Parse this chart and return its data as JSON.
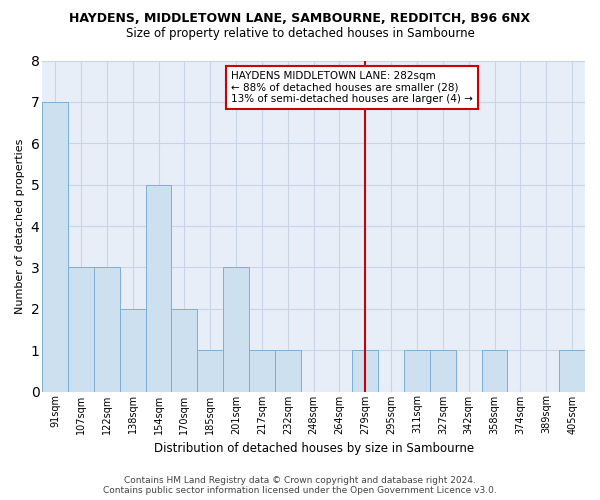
{
  "title1": "HAYDENS, MIDDLETOWN LANE, SAMBOURNE, REDDITCH, B96 6NX",
  "title2": "Size of property relative to detached houses in Sambourne",
  "xlabel": "Distribution of detached houses by size in Sambourne",
  "ylabel": "Number of detached properties",
  "categories": [
    "91sqm",
    "107sqm",
    "122sqm",
    "138sqm",
    "154sqm",
    "170sqm",
    "185sqm",
    "201sqm",
    "217sqm",
    "232sqm",
    "248sqm",
    "264sqm",
    "279sqm",
    "295sqm",
    "311sqm",
    "327sqm",
    "342sqm",
    "358sqm",
    "374sqm",
    "389sqm",
    "405sqm"
  ],
  "values": [
    7,
    3,
    3,
    2,
    5,
    2,
    1,
    3,
    1,
    1,
    0,
    0,
    1,
    0,
    1,
    1,
    0,
    1,
    0,
    0,
    1
  ],
  "bar_color": "#cce0f0",
  "bar_edge_color": "#7ab0d8",
  "bar_linewidth": 0.7,
  "vline_x_idx": 12,
  "vline_color": "#cc0000",
  "annotation_title": "HAYDENS MIDDLETOWN LANE: 282sqm",
  "annotation_line1": "← 88% of detached houses are smaller (28)",
  "annotation_line2": "13% of semi-detached houses are larger (4) →",
  "annotation_box_color": "#ffffff",
  "annotation_box_edge_color": "#cc0000",
  "ylim": [
    0,
    8
  ],
  "yticks": [
    0,
    1,
    2,
    3,
    4,
    5,
    6,
    7,
    8
  ],
  "grid_color": "#c8d4e8",
  "plot_bg_color": "#e8eef8",
  "footer1": "Contains HM Land Registry data © Crown copyright and database right 2024.",
  "footer2": "Contains public sector information licensed under the Open Government Licence v3.0."
}
